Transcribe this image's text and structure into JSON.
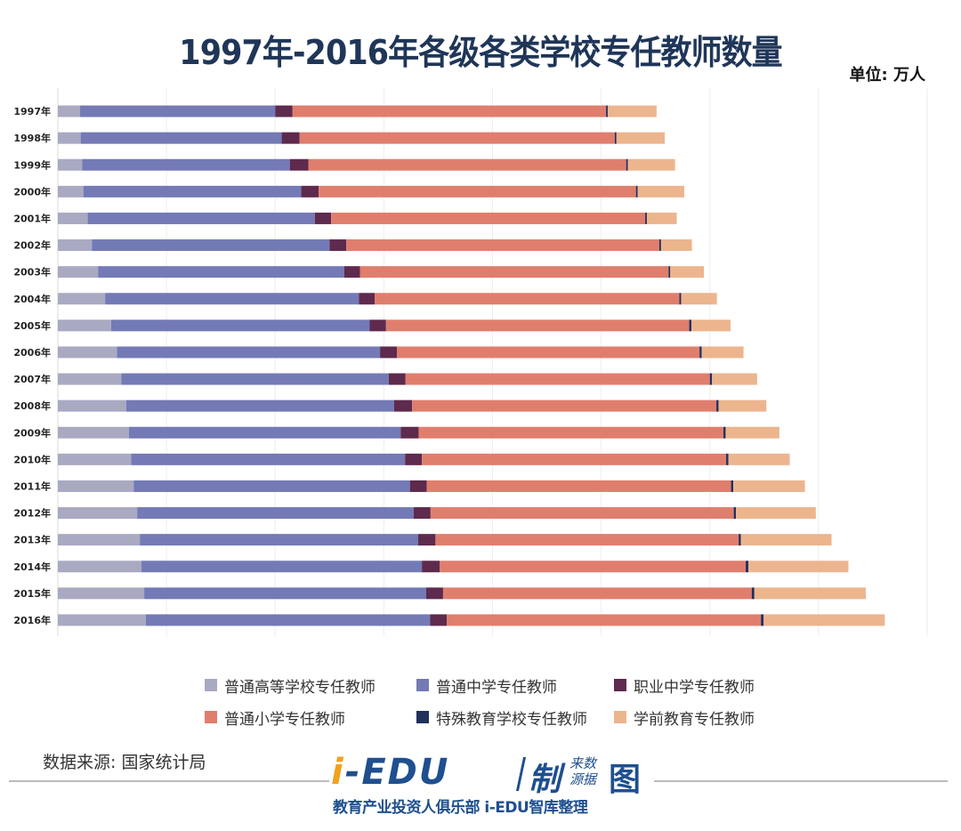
{
  "header": {
    "title": "1997年-2016年各级各类学校专任教师数量",
    "unit": "单位: 万人"
  },
  "chart_data": {
    "type": "bar",
    "orientation": "horizontal",
    "stacked": true,
    "title": "1997年-2016年各级各类学校专任教师数量",
    "xlabel": "",
    "ylabel": "",
    "unit": "万人",
    "xlim": [
      0,
      1600
    ],
    "xticks": [
      0,
      200,
      400,
      600,
      800,
      1000,
      1200,
      1400,
      1600
    ],
    "grid": true,
    "legend_position": "bottom",
    "categories": [
      "1997年",
      "1998年",
      "1999年",
      "2000年",
      "2001年",
      "2002年",
      "2003年",
      "2004年",
      "2005年",
      "2006年",
      "2007年",
      "2008年",
      "2009年",
      "2010年",
      "2011年",
      "2012年",
      "2013年",
      "2014年",
      "2015年",
      "2016年"
    ],
    "series": [
      {
        "name": "普通高等学校专任教师",
        "color": "#a9a9c2",
        "values": [
          41,
          42,
          45,
          47,
          55,
          63,
          74,
          87,
          98,
          109,
          117,
          126,
          131,
          135,
          140,
          146,
          151,
          154,
          159,
          162
        ]
      },
      {
        "name": "普通中学专任教师",
        "color": "#737ab5",
        "values": [
          359,
          370,
          382,
          401,
          418,
          437,
          453,
          467,
          476,
          484,
          492,
          493,
          500,
          504,
          508,
          509,
          512,
          516,
          519,
          523
        ]
      },
      {
        "name": "职业中学专任教师",
        "color": "#5e2a4e",
        "values": [
          32,
          33,
          34,
          32,
          30,
          31,
          29,
          29,
          30,
          31,
          31,
          33,
          33,
          31,
          31,
          31,
          32,
          33,
          31,
          31
        ]
      },
      {
        "name": "普通小学专任教师",
        "color": "#e07e6e",
        "values": [
          577,
          580,
          585,
          584,
          578,
          576,
          568,
          561,
          558,
          557,
          560,
          560,
          561,
          560,
          560,
          558,
          558,
          563,
          568,
          578
        ]
      },
      {
        "name": "特殊教育学校专任教师",
        "color": "#22305c",
        "values": [
          3,
          3,
          3,
          3,
          3,
          3,
          3,
          3,
          4,
          4,
          4,
          4,
          4,
          4,
          4,
          4,
          4,
          5,
          5,
          5
        ]
      },
      {
        "name": "学前教育专任教师",
        "color": "#ecb58e",
        "values": [
          90,
          89,
          87,
          86,
          55,
          57,
          62,
          66,
          72,
          77,
          83,
          88,
          99,
          113,
          132,
          147,
          167,
          184,
          205,
          223
        ]
      }
    ]
  },
  "footer": {
    "source": "数据来源: 国家统计局",
    "logo_main_i": "i",
    "logo_main_rest": "-EDU",
    "logo_zhi": "制",
    "logo_small_top": "来数",
    "logo_small_bottom": "源据",
    "logo_tu": "图",
    "logo_sub": "教育产业投资人俱乐部  i-EDU智库整理"
  }
}
